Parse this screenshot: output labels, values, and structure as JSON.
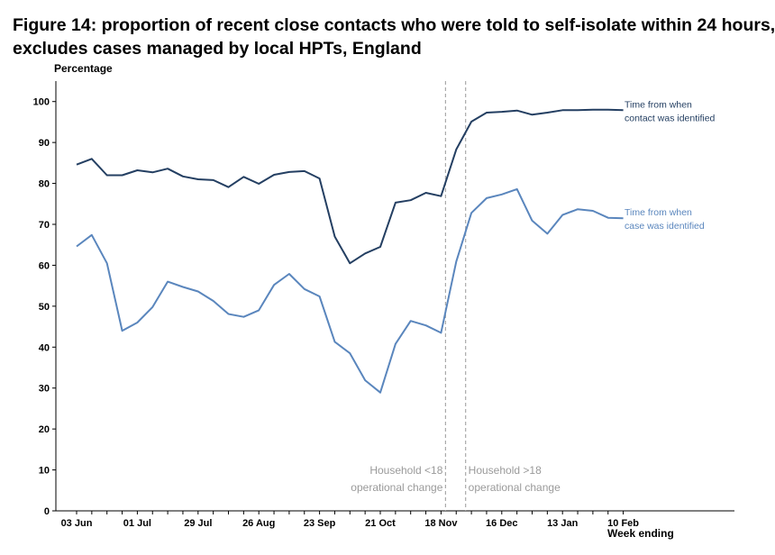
{
  "title_line1": "Figure 14: proportion of recent close contacts who were told to self-isolate within 24 hours,",
  "title_line2": "excludes cases managed by local HPTs, England",
  "chart_data": {
    "type": "line",
    "ylabel": "Percentage",
    "xlabel": "Week ending",
    "ylim": [
      0,
      105
    ],
    "yticks": [
      0,
      10,
      20,
      30,
      40,
      50,
      60,
      70,
      80,
      90,
      100
    ],
    "x_tick_labels": [
      {
        "index": 0,
        "label": "03 Jun"
      },
      {
        "index": 4,
        "label": "01 Jul"
      },
      {
        "index": 8,
        "label": "29 Jul"
      },
      {
        "index": 12,
        "label": "26 Aug"
      },
      {
        "index": 16,
        "label": "23 Sep"
      },
      {
        "index": 20,
        "label": "21 Oct"
      },
      {
        "index": 24,
        "label": "18 Nov"
      },
      {
        "index": 28,
        "label": "16 Dec"
      },
      {
        "index": 32,
        "label": "13 Jan"
      },
      {
        "index": 36,
        "label": "10 Feb"
      }
    ],
    "series": [
      {
        "label_lines": [
          "Time from when",
          "contact was identified"
        ],
        "color": "#243f62",
        "values": [
          84.6,
          86.0,
          82.0,
          82.0,
          83.2,
          82.7,
          83.6,
          81.7,
          81.0,
          80.8,
          79.1,
          81.6,
          79.9,
          82.1,
          82.8,
          83.0,
          81.2,
          67.0,
          60.5,
          62.9,
          64.5,
          75.3,
          75.9,
          77.7,
          76.9,
          88.3,
          95.1,
          97.3,
          97.5,
          97.8,
          96.8,
          97.3,
          97.9,
          97.9,
          98.0,
          98.0,
          97.9
        ]
      },
      {
        "label_lines": [
          "Time from when",
          "case was identified"
        ],
        "color": "#5a86bd",
        "values": [
          64.6,
          67.4,
          60.5,
          44.0,
          46.0,
          49.8,
          56.0,
          54.7,
          53.6,
          51.3,
          48.1,
          47.4,
          49.0,
          55.2,
          57.9,
          54.2,
          52.4,
          41.3,
          38.5,
          31.9,
          28.9,
          40.8,
          46.4,
          45.3,
          43.5,
          60.9,
          72.8,
          76.4,
          77.3,
          78.6,
          70.9,
          67.7,
          72.3,
          73.7,
          73.3,
          71.6,
          71.5
        ]
      }
    ],
    "annotations": [
      {
        "at_index": 24,
        "lines": [
          "Household <18",
          "operational change"
        ],
        "side": "left"
      },
      {
        "at_index": 25.5,
        "lines": [
          "Household >18",
          "operational change"
        ],
        "side": "right"
      }
    ]
  }
}
